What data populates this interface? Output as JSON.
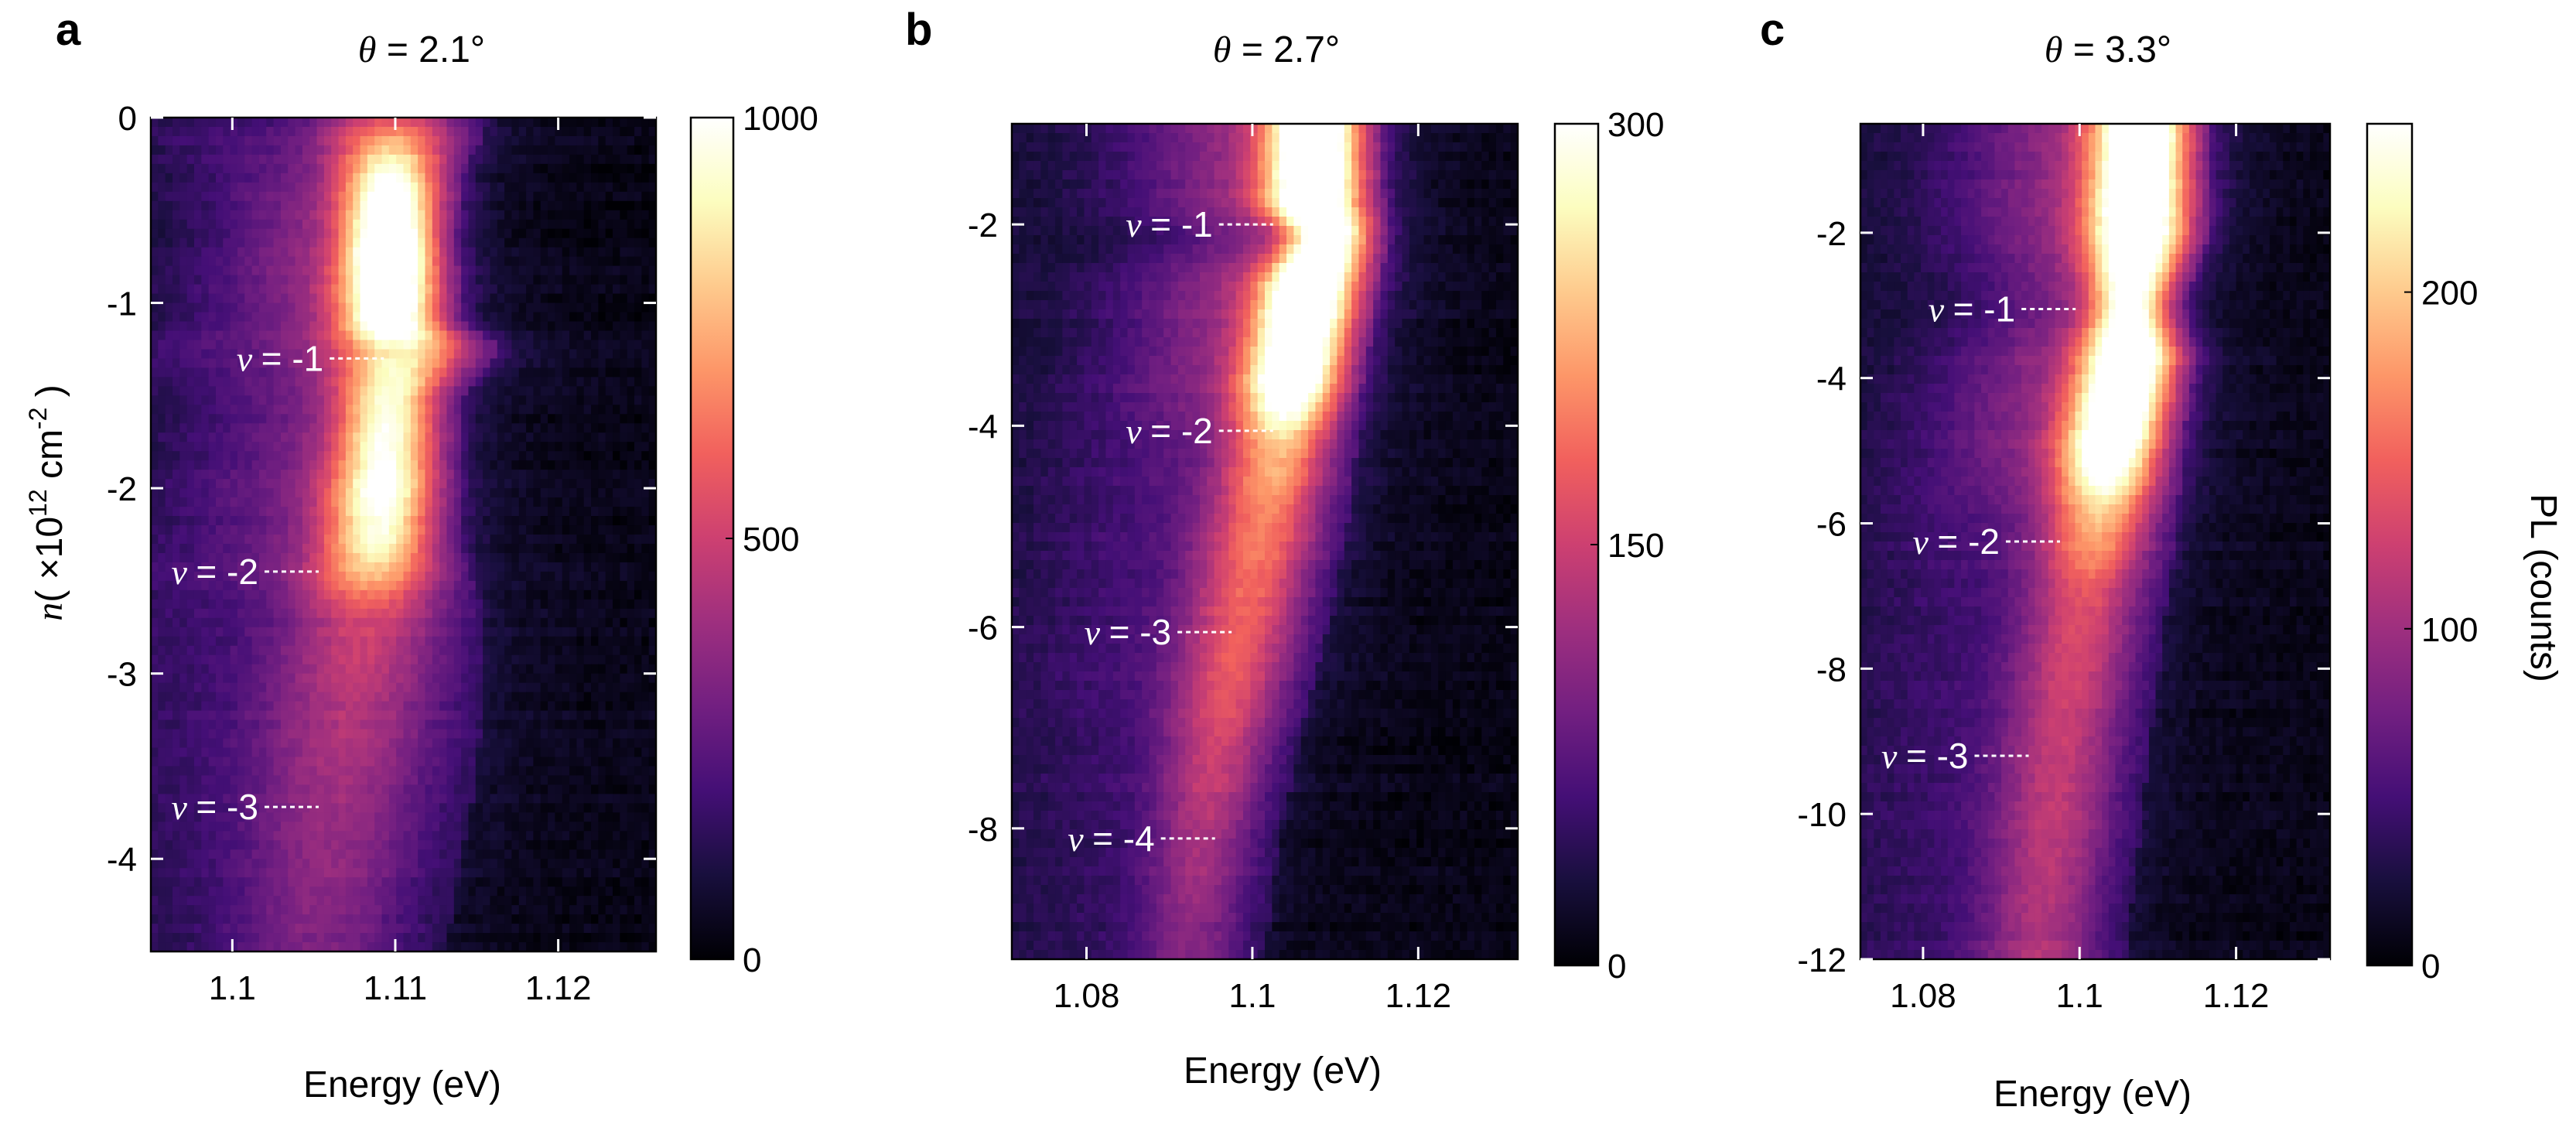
{
  "chart_data": [
    {
      "type": "heatmap",
      "panel_label": "a",
      "title_symbol": "θ",
      "title_value": "= 2.1°",
      "xlabel": "Energy (eV)",
      "ylabel": "",
      "xlim": [
        1.095,
        1.126
      ],
      "ylim": [
        -4.5,
        0
      ],
      "xticks": [
        1.1,
        1.11,
        1.12
      ],
      "xtick_labels": [
        "1.1",
        "1.11",
        "1.12"
      ],
      "yticks": [
        0,
        -1,
        -2,
        -3,
        -4
      ],
      "ytick_labels": [
        "0",
        "-1",
        "-2",
        "-3",
        "-4"
      ],
      "colorbar": {
        "min": 0,
        "max": 1000,
        "ticks": [
          0,
          500,
          1000
        ],
        "tick_labels": [
          "0",
          "500",
          "1000"
        ],
        "label": ""
      },
      "filling_annotations": [
        {
          "symbol": "ν",
          "text": "= -1",
          "n": -1.3,
          "energy": 1.1093
        },
        {
          "symbol": "ν",
          "text": "= -2",
          "n": -2.45,
          "energy": 1.1053
        },
        {
          "symbol": "ν",
          "text": "= -3",
          "n": -3.72,
          "energy": 1.1053
        }
      ],
      "emission_ridge": [
        {
          "n": 0.0,
          "energy": 1.11,
          "intensity": 380,
          "width": 0.003
        },
        {
          "n": -0.3,
          "energy": 1.1098,
          "intensity": 760,
          "width": 0.0022
        },
        {
          "n": -0.7,
          "energy": 1.1097,
          "intensity": 1000,
          "width": 0.002
        },
        {
          "n": -1.1,
          "energy": 1.1097,
          "intensity": 900,
          "width": 0.0022
        },
        {
          "n": -1.25,
          "energy": 1.1105,
          "intensity": 650,
          "width": 0.003
        },
        {
          "n": -1.5,
          "energy": 1.1097,
          "intensity": 700,
          "width": 0.0022
        },
        {
          "n": -2.0,
          "energy": 1.1093,
          "intensity": 780,
          "width": 0.0023
        },
        {
          "n": -2.3,
          "energy": 1.109,
          "intensity": 700,
          "width": 0.0025
        },
        {
          "n": -2.7,
          "energy": 1.1085,
          "intensity": 350,
          "width": 0.0035
        },
        {
          "n": -3.2,
          "energy": 1.1075,
          "intensity": 290,
          "width": 0.004
        },
        {
          "n": -3.8,
          "energy": 1.1065,
          "intensity": 240,
          "width": 0.004
        },
        {
          "n": -4.5,
          "energy": 1.1055,
          "intensity": 200,
          "width": 0.0038
        }
      ]
    },
    {
      "type": "heatmap",
      "panel_label": "b",
      "title_symbol": "θ",
      "title_value": "= 2.7°",
      "xlabel": "Energy (eV)",
      "ylabel": "",
      "xlim": [
        1.071,
        1.132
      ],
      "ylim": [
        -9.3,
        -1.0
      ],
      "xticks": [
        1.08,
        1.1,
        1.12
      ],
      "xtick_labels": [
        "1.08",
        "1.1",
        "1.12"
      ],
      "yticks": [
        -2,
        -4,
        -6,
        -8
      ],
      "ytick_labels": [
        "-2",
        "-4",
        "-6",
        "-8"
      ],
      "colorbar": {
        "min": 0,
        "max": 300,
        "ticks": [
          0,
          150,
          300
        ],
        "tick_labels": [
          "0",
          "150",
          "300"
        ],
        "label": ""
      },
      "filling_annotations": [
        {
          "symbol": "ν",
          "text": "= -1",
          "n": -2.0,
          "energy": 1.1025
        },
        {
          "symbol": "ν",
          "text": "= -2",
          "n": -4.05,
          "energy": 1.1025
        },
        {
          "symbol": "ν",
          "text": "= -3",
          "n": -6.05,
          "energy": 1.0975
        },
        {
          "symbol": "ν",
          "text": "= -4",
          "n": -8.1,
          "energy": 1.0955
        }
      ],
      "emission_ridge": [
        {
          "n": -1.0,
          "energy": 1.1075,
          "intensity": 300,
          "width": 0.004
        },
        {
          "n": -1.8,
          "energy": 1.1075,
          "intensity": 300,
          "width": 0.0042
        },
        {
          "n": -2.1,
          "energy": 1.1095,
          "intensity": 270,
          "width": 0.0035
        },
        {
          "n": -2.6,
          "energy": 1.107,
          "intensity": 300,
          "width": 0.0042
        },
        {
          "n": -3.5,
          "energy": 1.105,
          "intensity": 290,
          "width": 0.0042
        },
        {
          "n": -4.2,
          "energy": 1.1035,
          "intensity": 170,
          "width": 0.0045
        },
        {
          "n": -5.0,
          "energy": 1.1015,
          "intensity": 140,
          "width": 0.005
        },
        {
          "n": -6.0,
          "energy": 1.099,
          "intensity": 125,
          "width": 0.005
        },
        {
          "n": -7.0,
          "energy": 1.0965,
          "intensity": 110,
          "width": 0.0048
        },
        {
          "n": -8.0,
          "energy": 1.0945,
          "intensity": 85,
          "width": 0.0045
        },
        {
          "n": -9.3,
          "energy": 1.0925,
          "intensity": 60,
          "width": 0.0045
        }
      ]
    },
    {
      "type": "heatmap",
      "panel_label": "c",
      "title_symbol": "θ",
      "title_value": "= 3.3°",
      "xlabel": "Energy (eV)",
      "ylabel": "",
      "xlim": [
        1.072,
        1.132
      ],
      "ylim": [
        -12.0,
        -0.5
      ],
      "xticks": [
        1.08,
        1.1,
        1.12
      ],
      "xtick_labels": [
        "1.08",
        "1.1",
        "1.12"
      ],
      "yticks": [
        -2,
        -4,
        -6,
        -8,
        -10,
        -12
      ],
      "ytick_labels": [
        "-2",
        "-4",
        "-6",
        "-8",
        "-10",
        "-12"
      ],
      "colorbar": {
        "min": 0,
        "max": 250,
        "ticks": [
          0,
          100,
          200
        ],
        "tick_labels": [
          "0",
          "100",
          "200"
        ],
        "label": "PL (counts)"
      },
      "filling_annotations": [
        {
          "symbol": "ν",
          "text": "= -1",
          "n": -3.05,
          "energy": 1.0995
        },
        {
          "symbol": "ν",
          "text": "= -2",
          "n": -6.25,
          "energy": 1.0975
        },
        {
          "symbol": "ν",
          "text": "= -3",
          "n": -9.2,
          "energy": 1.0935
        }
      ],
      "emission_ridge": [
        {
          "n": -0.5,
          "energy": 1.108,
          "intensity": 250,
          "width": 0.0042
        },
        {
          "n": -2.0,
          "energy": 1.1075,
          "intensity": 250,
          "width": 0.0045
        },
        {
          "n": -3.0,
          "energy": 1.1065,
          "intensity": 200,
          "width": 0.0035
        },
        {
          "n": -3.7,
          "energy": 1.1065,
          "intensity": 250,
          "width": 0.0042
        },
        {
          "n": -5.0,
          "energy": 1.104,
          "intensity": 230,
          "width": 0.0045
        },
        {
          "n": -5.8,
          "energy": 1.103,
          "intensity": 150,
          "width": 0.0048
        },
        {
          "n": -7.0,
          "energy": 1.101,
          "intensity": 95,
          "width": 0.0052
        },
        {
          "n": -9.0,
          "energy": 1.098,
          "intensity": 80,
          "width": 0.0055
        },
        {
          "n": -12.0,
          "energy": 1.095,
          "intensity": 70,
          "width": 0.0055
        }
      ]
    }
  ],
  "shared": {
    "ylabel_symbol": "n",
    "ylabel_open": "( ×10",
    "ylabel_exponent": "12",
    "ylabel_unit": " cm",
    "ylabel_unit_exponent": "-2",
    "ylabel_close": " )"
  },
  "colors": {
    "colormap": [
      "#000004",
      "#180f3d",
      "#440f76",
      "#721f81",
      "#9e2f7f",
      "#cd4071",
      "#f1605d",
      "#fd9668",
      "#feca8d",
      "#fcfdbf",
      "#ffffff"
    ],
    "annotation_text": "#ffffff",
    "axis": "#000000"
  }
}
